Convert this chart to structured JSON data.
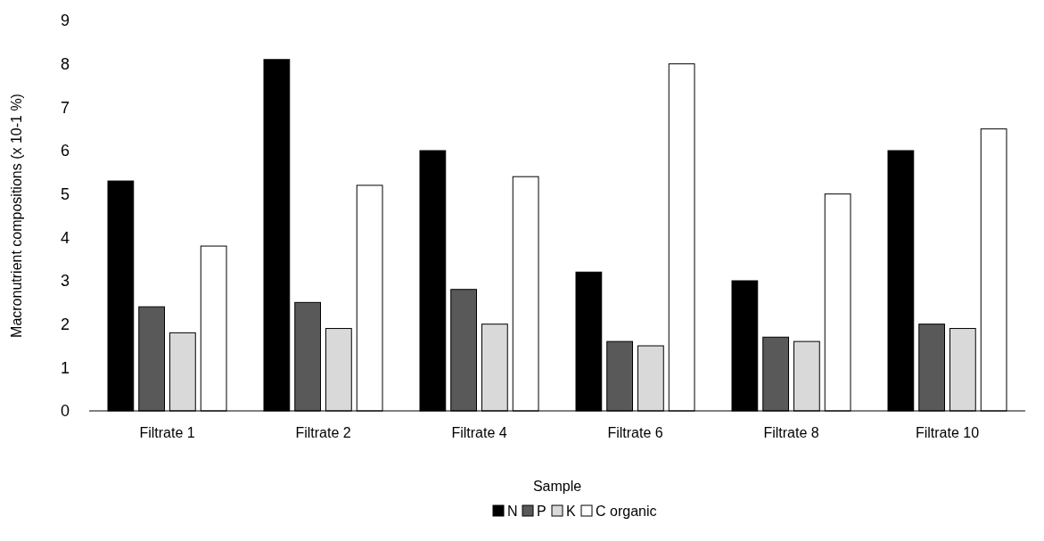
{
  "chart_data": {
    "type": "bar",
    "xlabel": "Sample",
    "ylabel": "Macronutrient compositions (x 10-1 %)",
    "categories": [
      "Filtrate 1",
      "Filtrate 2",
      "Filtrate 4",
      "Filtrate 6",
      "Filtrate 8",
      "Filtrate 10"
    ],
    "series": [
      {
        "name": "N",
        "color": "#000000",
        "values": [
          5.3,
          8.1,
          6.0,
          3.2,
          3.0,
          6.0
        ]
      },
      {
        "name": "P",
        "color": "#595959",
        "values": [
          2.4,
          2.5,
          2.8,
          1.6,
          1.7,
          2.0
        ]
      },
      {
        "name": "K",
        "color": "#d9d9d9",
        "values": [
          1.8,
          1.9,
          2.0,
          1.5,
          1.6,
          1.9
        ]
      },
      {
        "name": "C organic",
        "color": "#ffffff",
        "values": [
          3.8,
          5.2,
          5.4,
          8.0,
          5.0,
          6.5
        ]
      }
    ],
    "ylim": [
      0,
      9
    ],
    "yticks": [
      0,
      1,
      2,
      3,
      4,
      5,
      6,
      7,
      8,
      9
    ],
    "grid": false,
    "legend": "bottom"
  }
}
